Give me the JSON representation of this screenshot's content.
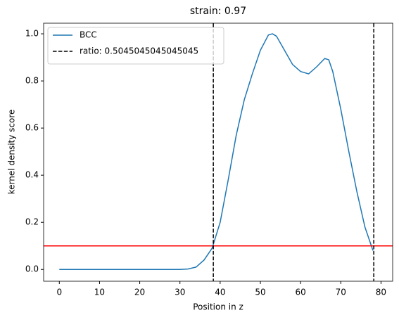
{
  "chart_data": {
    "type": "line",
    "title": "strain: 0.97",
    "x_label": "Position in z",
    "y_label": "kernel density score",
    "x": [
      0,
      4,
      8,
      12,
      16,
      20,
      24,
      28,
      30,
      32,
      34,
      36,
      38,
      40,
      42,
      44,
      46,
      48,
      50,
      52,
      53,
      54,
      56,
      58,
      60,
      62,
      64,
      66,
      67,
      68,
      70,
      72,
      74,
      76,
      78
    ],
    "series": [
      {
        "name": "BCC",
        "color": "#1f77b4",
        "values": [
          0,
          0,
          0,
          0,
          0,
          0,
          0,
          0,
          0,
          0.002,
          0.01,
          0.04,
          0.09,
          0.2,
          0.38,
          0.57,
          0.72,
          0.83,
          0.93,
          0.995,
          1.0,
          0.99,
          0.93,
          0.87,
          0.84,
          0.83,
          0.86,
          0.895,
          0.89,
          0.84,
          0.68,
          0.5,
          0.33,
          0.18,
          0.08
        ]
      }
    ],
    "vlines": {
      "name": "ratio: 0.5045045045045045",
      "color": "#000000",
      "values": [
        38.3,
        78.2
      ]
    },
    "hlines": [
      {
        "value": 0.1,
        "color": "#ff0000"
      }
    ],
    "xlim": [
      -3.9,
      82.9
    ],
    "ylim": [
      -0.05,
      1.045
    ],
    "xticks": [
      0,
      10,
      20,
      30,
      40,
      50,
      60,
      70,
      80
    ],
    "yticks": [
      {
        "value": 0,
        "label": "0.0"
      },
      {
        "value": 0.2,
        "label": "0.2"
      },
      {
        "value": 0.4,
        "label": "0.4"
      },
      {
        "value": 0.6,
        "label": "0.6"
      },
      {
        "value": 0.8,
        "label": "0.8"
      },
      {
        "value": 1.0,
        "label": "1.0"
      }
    ],
    "legend": "upper left",
    "grid": false
  }
}
